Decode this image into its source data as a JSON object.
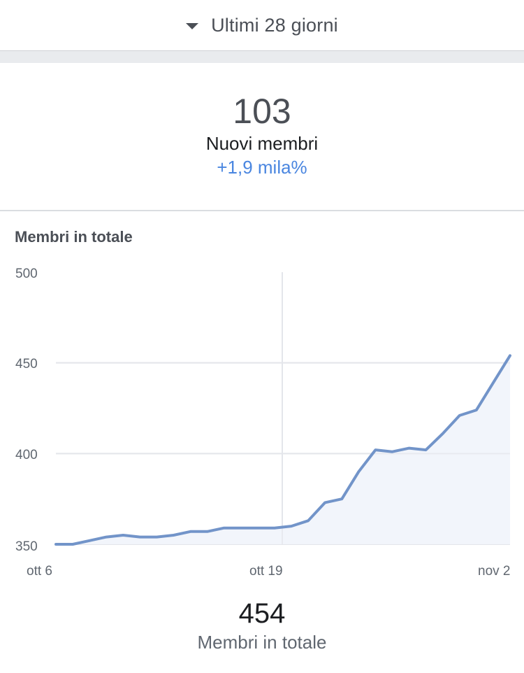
{
  "range_selector": {
    "icon": "caret-down-icon",
    "label": "Ultimi 28 giorni"
  },
  "stats": {
    "value": "103",
    "label": "Nuovi membri",
    "change": "+1,9 mila%",
    "change_color": "#4a86e0"
  },
  "chart": {
    "title": "Membri in totale",
    "y_ticks": [
      "500",
      "450",
      "400",
      "350"
    ],
    "x_ticks": [
      "ott 6",
      "ott 19",
      "nov 2"
    ],
    "line_color": "#7294c9",
    "fill_color": "#f2f5fb"
  },
  "summary": {
    "value": "454",
    "label": "Membri in totale"
  },
  "chart_data": {
    "type": "area",
    "title": "Membri in totale",
    "xlabel": "",
    "ylabel": "",
    "x": [
      "ott 6",
      "ott 7",
      "ott 8",
      "ott 9",
      "ott 10",
      "ott 11",
      "ott 12",
      "ott 13",
      "ott 14",
      "ott 15",
      "ott 16",
      "ott 17",
      "ott 18",
      "ott 19",
      "ott 20",
      "ott 21",
      "ott 22",
      "ott 23",
      "ott 24",
      "ott 25",
      "ott 26",
      "ott 27",
      "ott 28",
      "ott 29",
      "ott 30",
      "ott 31",
      "nov 1",
      "nov 2"
    ],
    "series": [
      {
        "name": "Membri in totale",
        "values": [
          350,
          350,
          352,
          354,
          355,
          354,
          354,
          355,
          357,
          357,
          359,
          359,
          359,
          359,
          360,
          363,
          373,
          375,
          390,
          402,
          401,
          403,
          402,
          411,
          421,
          424,
          439,
          454
        ]
      }
    ],
    "x_tick_labels": [
      "ott 6",
      "ott 19",
      "nov 2"
    ],
    "y_tick_labels": [
      "350",
      "400",
      "450",
      "500"
    ],
    "ylim": [
      350,
      500
    ],
    "grid": true,
    "legend": "none"
  }
}
